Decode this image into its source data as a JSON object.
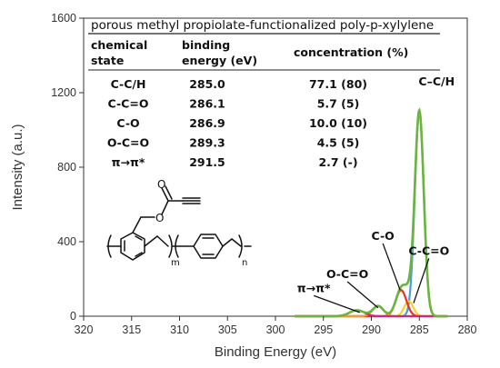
{
  "chart_data": {
    "type": "line",
    "title": "",
    "xlabel": "Binding Energy (eV)",
    "ylabel": "Intensity (a.u.)",
    "xlim": [
      320,
      280
    ],
    "ylim": [
      0,
      1600
    ],
    "x_reversed": true,
    "x_ticks": [
      "320",
      "315",
      "310",
      "305",
      "300",
      "295",
      "290",
      "285",
      "280"
    ],
    "y_ticks": [
      "0",
      "400",
      "800",
      "1200",
      "1600"
    ],
    "grid": false,
    "legend": "none",
    "series": [
      {
        "label": "C–C/H",
        "color": "#4a9fd8",
        "peak": 285.0,
        "height": 1100,
        "fwhm": 1.1
      },
      {
        "label": "C-C=O",
        "color": "#f5d327",
        "peak": 286.1,
        "height": 80,
        "fwhm": 1.1
      },
      {
        "label": "C-O",
        "color": "#e8302b",
        "peak": 286.9,
        "height": 140,
        "fwhm": 1.3
      },
      {
        "label": "O-C=O",
        "color": "#f29a38",
        "peak": 289.3,
        "height": 55,
        "fwhm": 1.3
      },
      {
        "label": "π→π*",
        "color": "#c22d8a",
        "peak": 291.5,
        "height": 32,
        "fwhm": 1.8
      },
      {
        "label": "envelope",
        "color": "#6cb33f",
        "peak": null,
        "height": null,
        "fwhm": null
      }
    ],
    "annotations": [
      {
        "text": "C–C/H",
        "at": [
          285.0,
          1100
        ],
        "anchor": [
          283.2,
          1240
        ]
      },
      {
        "text": "C-C=O",
        "at": [
          285.6,
          70
        ],
        "anchor": [
          284.0,
          330
        ]
      },
      {
        "text": "C-O",
        "at": [
          287.0,
          140
        ],
        "anchor": [
          288.8,
          410
        ]
      },
      {
        "text": "O-C=O",
        "at": [
          289.3,
          45
        ],
        "anchor": [
          292.5,
          205
        ]
      },
      {
        "text": "π→π*",
        "at": [
          291.2,
          20
        ],
        "anchor": [
          296.0,
          130
        ]
      }
    ]
  },
  "table": {
    "title": "porous methyl propiolate-functionalized poly-p-xylylene",
    "headers": [
      [
        "chemical",
        "state"
      ],
      [
        "binding",
        "energy (eV)"
      ],
      [
        "concentration (%)"
      ]
    ],
    "rows": [
      [
        "C-C/H",
        "285.0",
        "77.1 (80)"
      ],
      [
        "C-C=O",
        "286.1",
        "5.7 (5)"
      ],
      [
        "C-O",
        "286.9",
        "10.0 (10)"
      ],
      [
        "O-C=O",
        "289.3",
        "4.5 (5)"
      ],
      [
        "π→π*",
        "291.5",
        "2.7 (-)"
      ]
    ]
  },
  "structure": {
    "subscripts": [
      "m",
      "n"
    ]
  },
  "colors": {
    "axis": "#333333",
    "envelope": "#6cb33f"
  }
}
